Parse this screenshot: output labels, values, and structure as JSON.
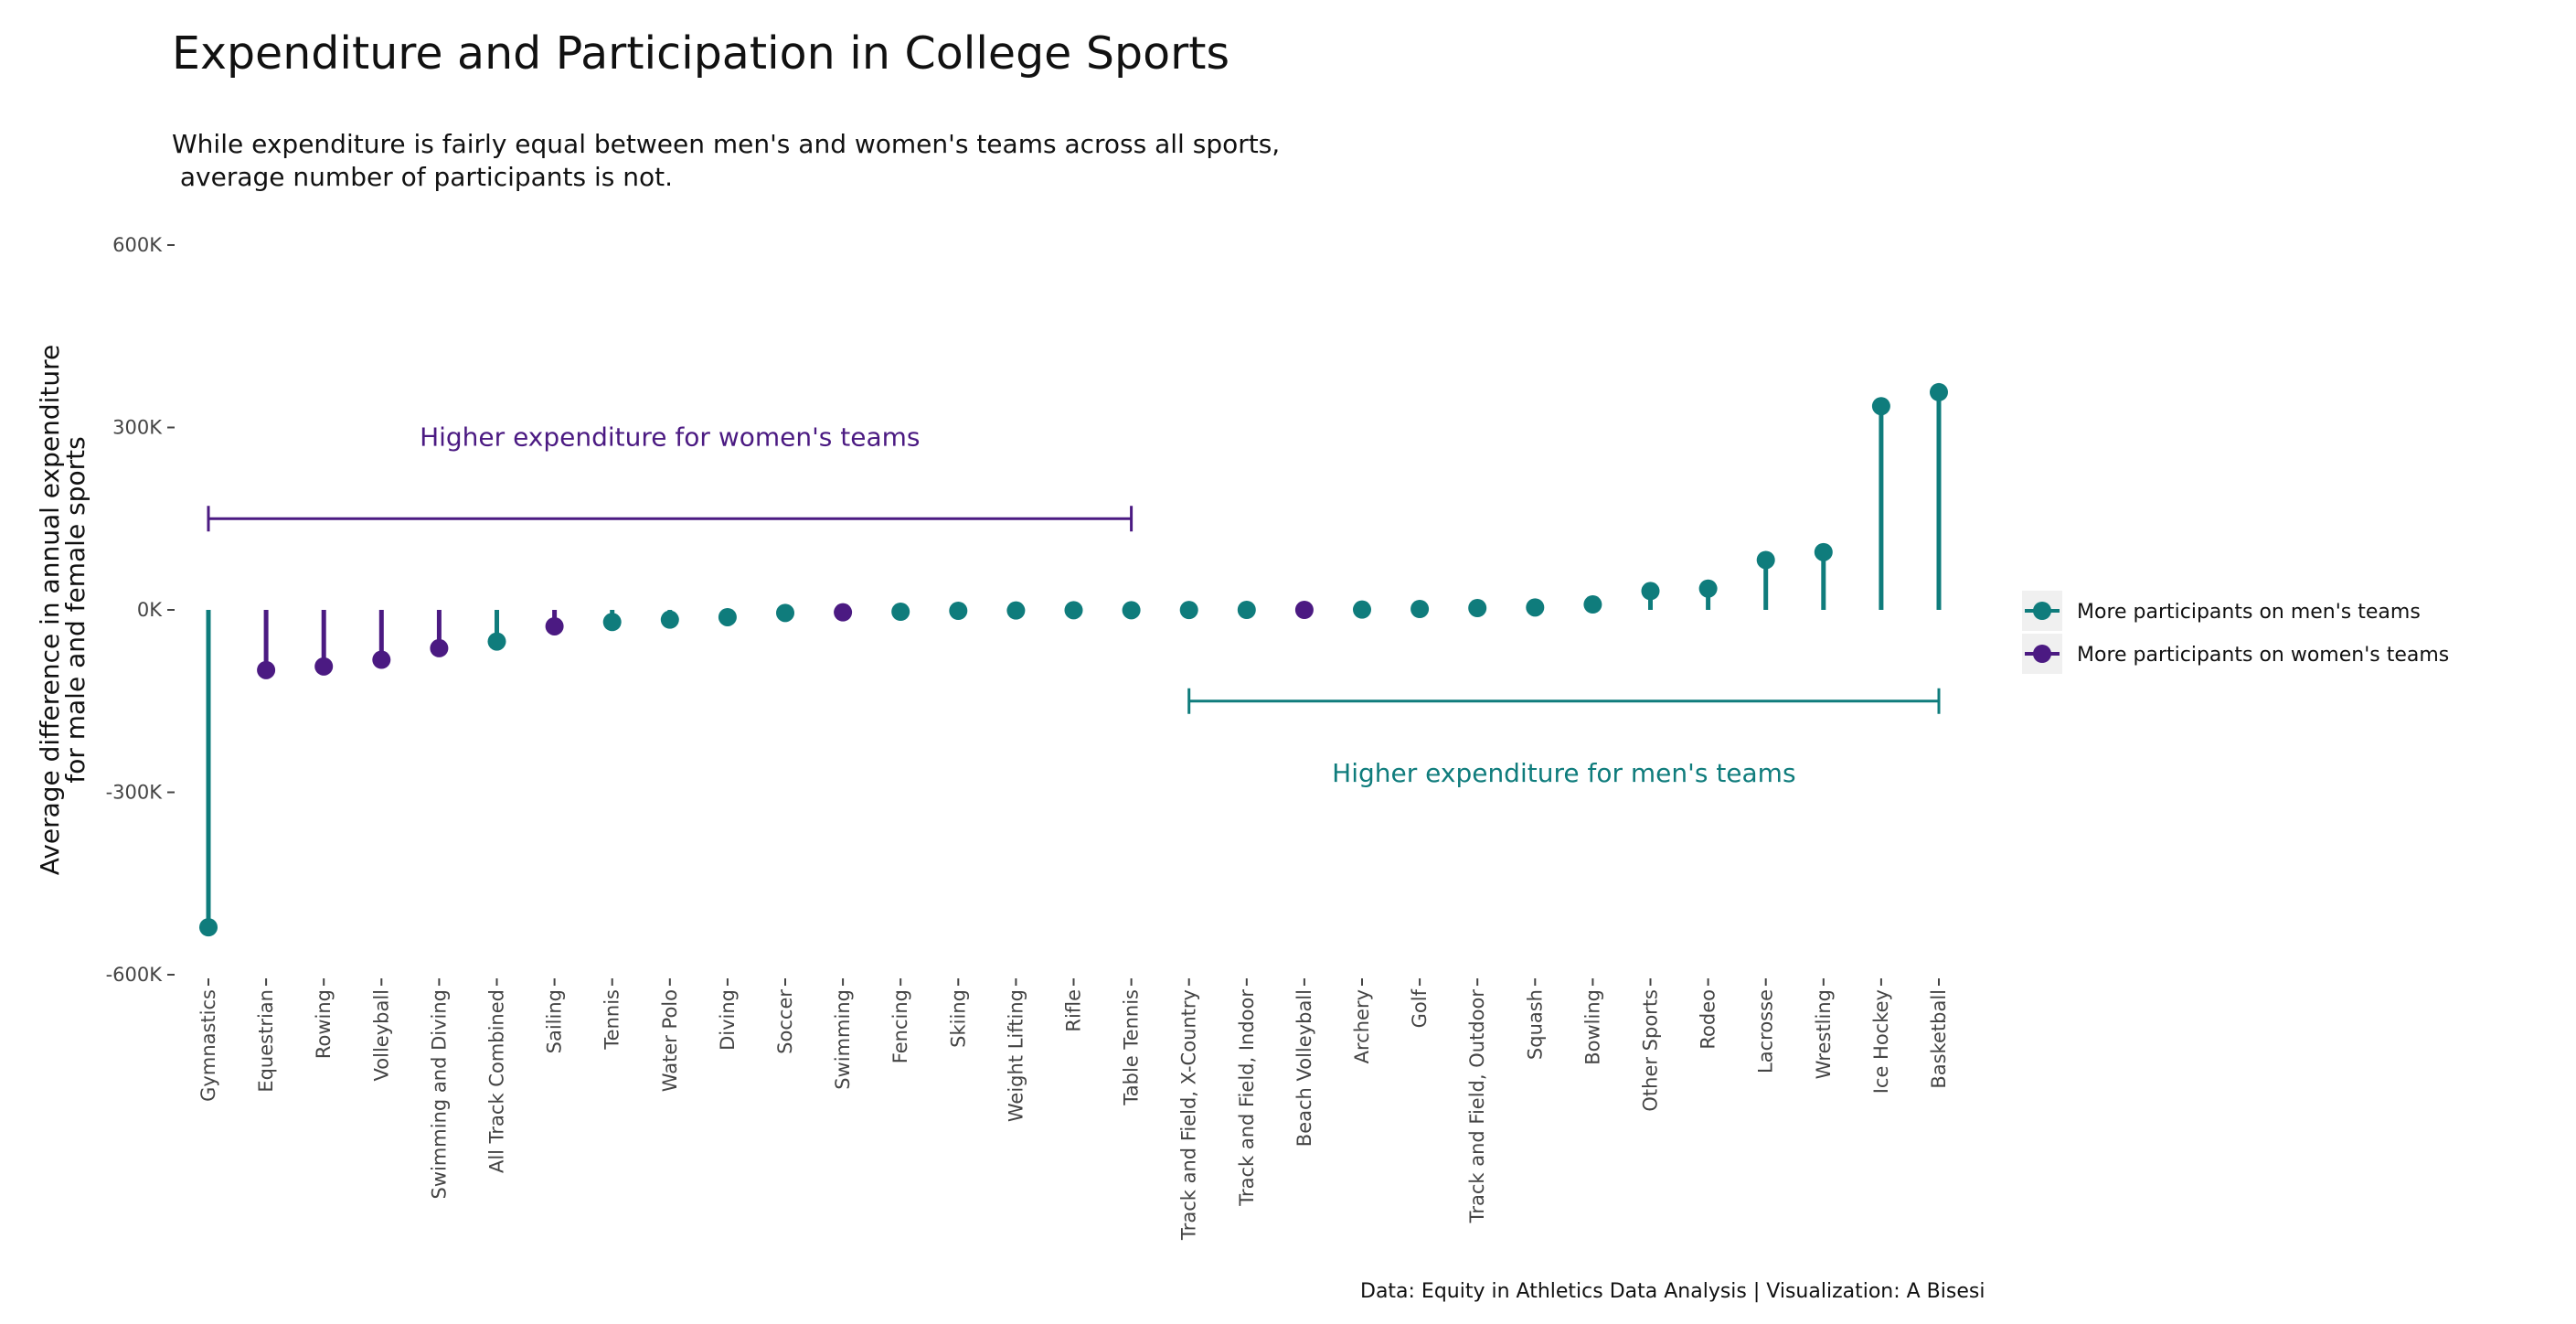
{
  "colors": {
    "men": "#0f7c7c",
    "women": "#4b1a82",
    "legend_bg": "#f0f0f0"
  },
  "page": {
    "title": "Expenditure and Participation in College Sports",
    "subtitle": "While expenditure is fairly equal between men's and women's teams across all sports,\n average number of participants is not.",
    "caption": "Data: Equity in Athletics Data Analysis | Visualization: A Bisesi"
  },
  "annotations": {
    "women_label": "Higher expenditure for women's teams",
    "men_label": "Higher expenditure for men's teams",
    "women_range": [
      "Gymnastics",
      "Table Tennis"
    ],
    "men_range": [
      "Track and Field, X-Country",
      "Basketball"
    ],
    "women_value": 150000,
    "men_value": -150000
  },
  "chart_data": {
    "type": "lollipop",
    "ylabel": "Average difference in annual expenditure\nfor male and female sports",
    "xlabel": "",
    "ylim": [
      -600000,
      600000
    ],
    "y_ticks": [
      600000,
      300000,
      0,
      -300000,
      -600000
    ],
    "y_tick_labels": [
      "600K",
      "300K",
      "0K",
      "-300K",
      "-600K"
    ],
    "grid": false,
    "legend_position": "right",
    "legend": [
      {
        "key": "men",
        "label": "More participants on men's teams"
      },
      {
        "key": "women",
        "label": "More participants on women's teams"
      }
    ],
    "categories": [
      "Gymnastics",
      "Equestrian",
      "Rowing",
      "Volleyball",
      "Swimming and Diving",
      "All Track Combined",
      "Sailing",
      "Tennis",
      "Water Polo",
      "Diving",
      "Soccer",
      "Swimming",
      "Fencing",
      "Skiing",
      "Weight Lifting",
      "Rifle",
      "Table Tennis",
      "Track and Field, X-Country",
      "Track and Field, Indoor",
      "Beach Volleyball",
      "Archery",
      "Golf",
      "Track and Field, Outdoor",
      "Squash",
      "Bowling",
      "Other Sports",
      "Rodeo",
      "Lacrosse",
      "Wrestling",
      "Ice Hockey",
      "Basketball"
    ],
    "values": [
      -522000,
      -99000,
      -93000,
      -82000,
      -63000,
      -52000,
      -27000,
      -20000,
      -16000,
      -12000,
      -5000,
      -4000,
      -3000,
      -1500,
      -1000,
      -500,
      -500,
      -200,
      0,
      0,
      500,
      1500,
      3000,
      4000,
      9000,
      31000,
      35000,
      82000,
      95000,
      335000,
      358000
    ],
    "groups": [
      "men",
      "women",
      "women",
      "women",
      "women",
      "men",
      "women",
      "men",
      "men",
      "men",
      "men",
      "women",
      "men",
      "men",
      "men",
      "men",
      "men",
      "men",
      "men",
      "women",
      "men",
      "men",
      "men",
      "men",
      "men",
      "men",
      "men",
      "men",
      "men",
      "men",
      "men"
    ]
  }
}
